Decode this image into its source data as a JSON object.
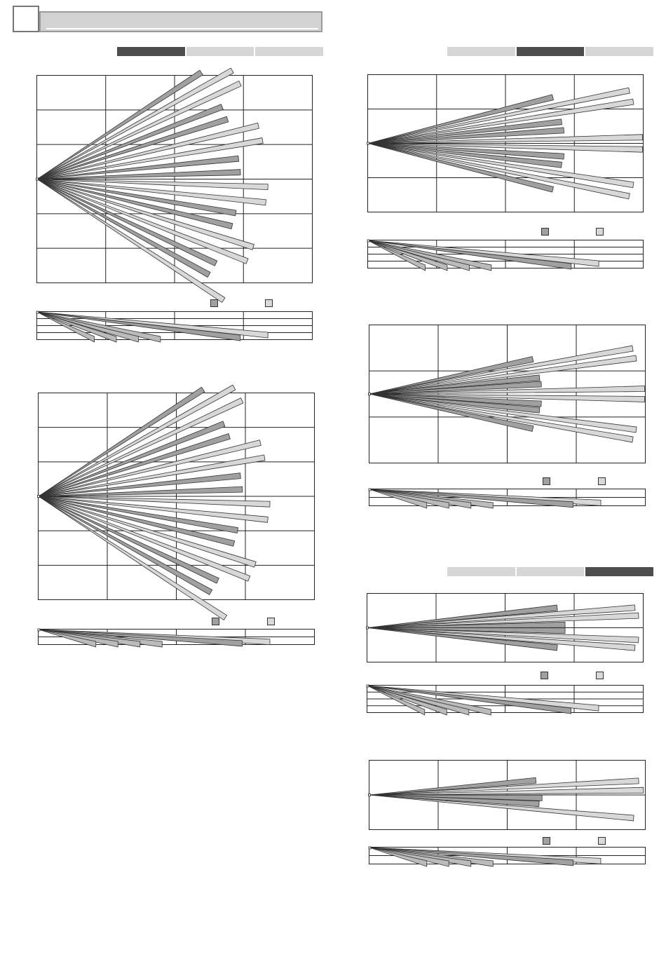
{
  "colors": {
    "wide_beam": "#a0a0a0",
    "narrow_beam": "#d8d8d8",
    "tab_active": "#4d4d4d",
    "tab_inactive": "#d6d6d6",
    "grid_line": "#222222"
  },
  "header": {
    "title": ""
  },
  "tabs_left": [
    {
      "active": true
    },
    {
      "active": false
    },
    {
      "active": false
    }
  ],
  "tabs_top_right": [
    {
      "active": false
    },
    {
      "active": true
    },
    {
      "active": false
    }
  ],
  "tabs_bottom_right": [
    {
      "active": false
    },
    {
      "active": false
    },
    {
      "active": true
    }
  ],
  "diagrams": [
    {
      "cols": 4,
      "top_rows": 6,
      "beams": 18,
      "spread_deg": 33,
      "lens": [
        0.74,
        0.84
      ]
    },
    {
      "cols": 4,
      "top_rows": 6,
      "beams": 18,
      "spread_deg": 33,
      "lens": [
        0.74,
        0.84
      ]
    },
    {
      "cols": 4,
      "top_rows": 4,
      "beams": 12,
      "spread_deg": 14,
      "lens": [
        0.72,
        1.0
      ]
    },
    {
      "cols": 4,
      "top_rows": 3,
      "beams": 12,
      "spread_deg": 12,
      "lens": [
        0.63,
        1.0
      ]
    },
    {
      "cols": 4,
      "top_rows": 2,
      "beams": 8,
      "spread_deg": 6,
      "lens": [
        0.72,
        1.0
      ]
    },
    {
      "cols": 4,
      "top_rows": 2,
      "beams": 6,
      "spread_deg": 5,
      "lens": [
        0.63,
        1.0
      ]
    }
  ]
}
